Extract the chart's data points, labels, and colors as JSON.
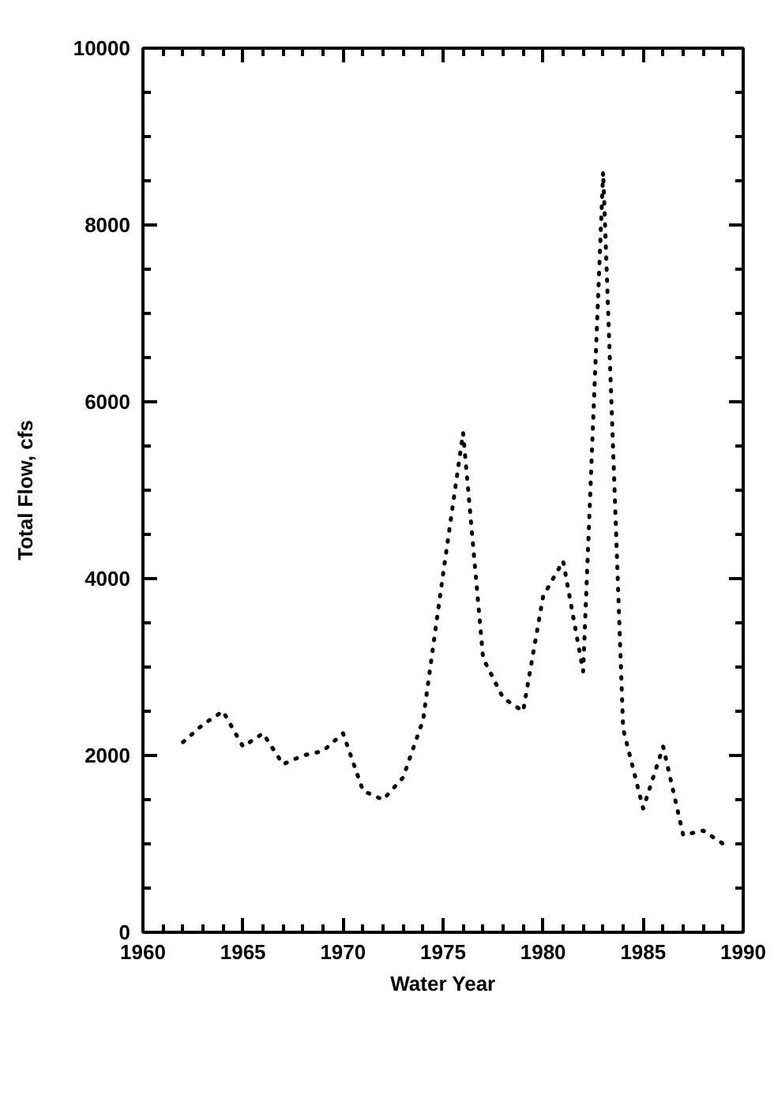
{
  "chart_data": {
    "type": "line",
    "xlabel": "Water Year",
    "ylabel": "Total Flow, cfs",
    "x": [
      1962,
      1963,
      1964,
      1965,
      1966,
      1967,
      1968,
      1969,
      1970,
      1971,
      1972,
      1973,
      1974,
      1975,
      1976,
      1977,
      1978,
      1979,
      1980,
      1981,
      1982,
      1983,
      1984,
      1985,
      1986,
      1987,
      1988,
      1989
    ],
    "series": [
      {
        "color": "#000000",
        "values": [
          2150,
          2350,
          2500,
          2100,
          2250,
          1900,
          2000,
          2050,
          2250,
          1600,
          1500,
          1750,
          2400,
          4050,
          5650,
          3100,
          2650,
          2500,
          3800,
          4200,
          2950,
          8600,
          2300,
          1400,
          2100,
          1100,
          1150,
          1000
        ]
      }
    ],
    "xlim": [
      1960,
      1990
    ],
    "xticks": [
      1960,
      1965,
      1970,
      1975,
      1980,
      1985,
      1990
    ],
    "ylim": [
      0,
      10000
    ],
    "yticks": [
      0,
      2000,
      4000,
      6000,
      8000,
      10000
    ],
    "grid": false,
    "line_style": "dotted",
    "marker": "none"
  }
}
